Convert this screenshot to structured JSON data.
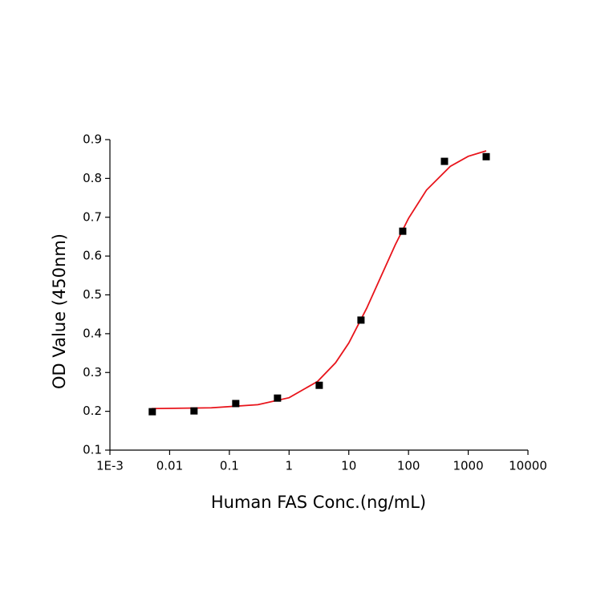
{
  "chart_data": {
    "type": "scatter",
    "xlabel": "Human FAS Conc.(ng/mL)",
    "ylabel": "OD Value (450nm)",
    "xscale": "log",
    "xlim": [
      0.001,
      10000
    ],
    "xticks": [
      {
        "value": 0.001,
        "label": "1E-3"
      },
      0.01,
      0.1,
      1,
      10,
      100,
      1000,
      10000
    ],
    "ylim": [
      0.1,
      0.9
    ],
    "yticks": [
      0.1,
      0.2,
      0.3,
      0.4,
      0.5,
      0.6,
      0.7,
      0.8,
      0.9
    ],
    "series": [
      {
        "style": "line",
        "color": "#e8141b",
        "x": [
          0.005,
          0.05,
          0.3,
          1,
          3,
          6,
          10,
          20,
          35,
          60,
          100,
          200,
          500,
          1000,
          2000
        ],
        "values": [
          0.207,
          0.209,
          0.217,
          0.235,
          0.277,
          0.325,
          0.376,
          0.466,
          0.549,
          0.629,
          0.697,
          0.77,
          0.831,
          0.857,
          0.871
        ]
      },
      {
        "style": "marker",
        "color": "#000000",
        "x": [
          0.00512,
          0.0256,
          0.128,
          0.64,
          3.2,
          16,
          80,
          400,
          2000
        ],
        "values": [
          0.199,
          0.201,
          0.22,
          0.234,
          0.267,
          0.435,
          0.664,
          0.844,
          0.856
        ]
      }
    ]
  }
}
